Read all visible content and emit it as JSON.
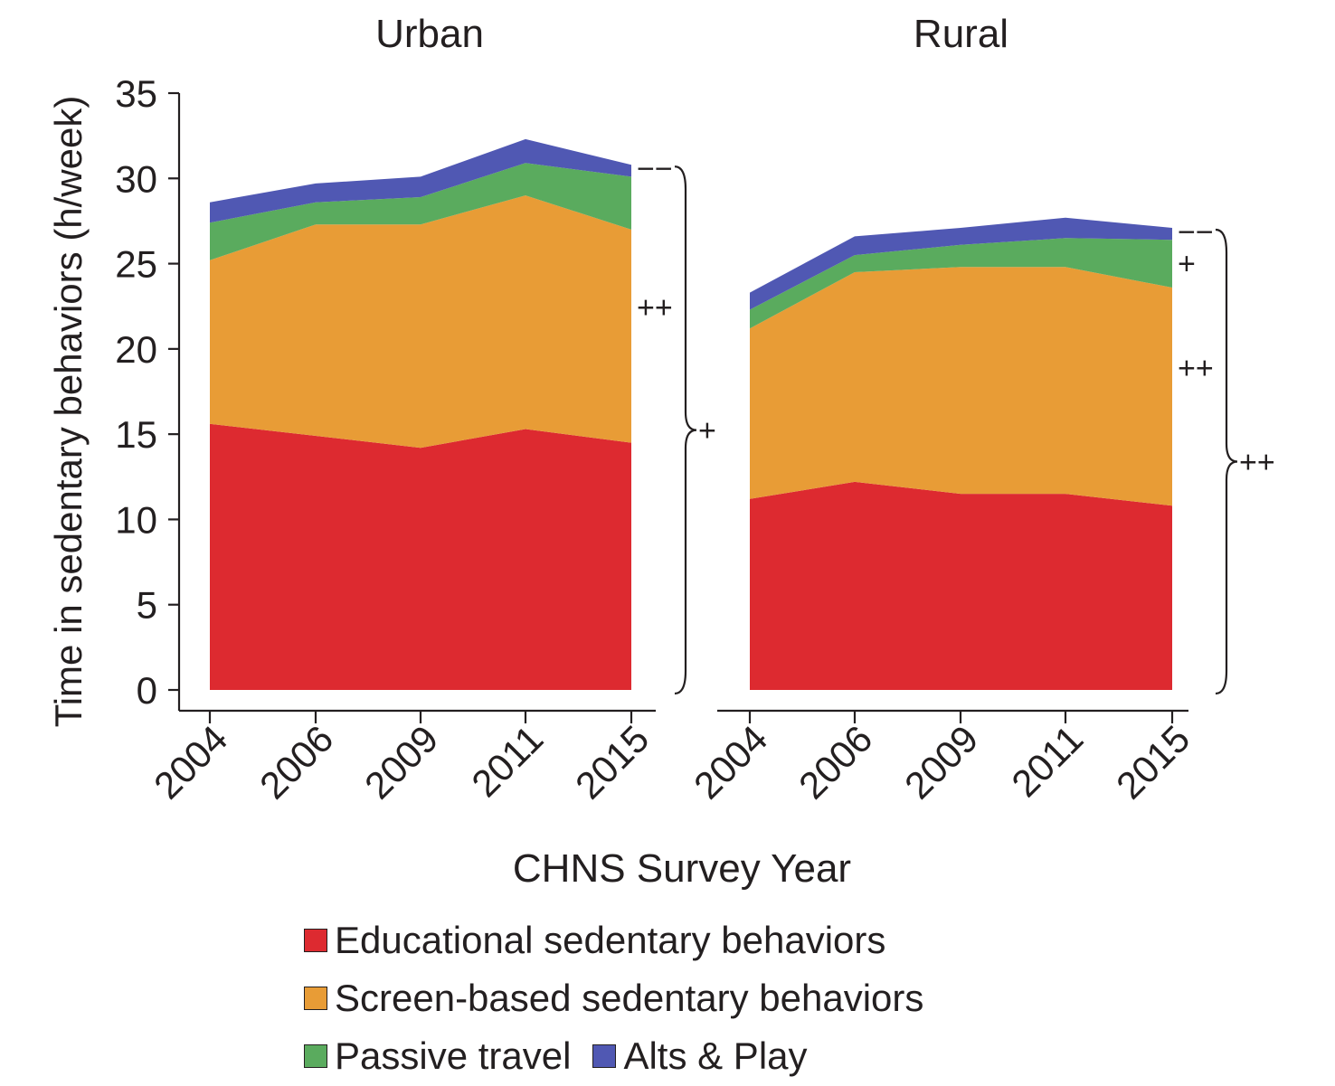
{
  "chart_data": {
    "type": "area",
    "stacked": true,
    "ylabel": "Time in sedentary behaviors (h/week)",
    "xlabel": "CHNS Survey Year",
    "ylim": [
      0,
      35
    ],
    "yticks": [
      0,
      5,
      10,
      15,
      20,
      25,
      30,
      35
    ],
    "categories": [
      "2004",
      "2006",
      "2009",
      "2011",
      "2015"
    ],
    "colors": {
      "Educational sedentary behaviors": "#dd2a30",
      "Screen-based sedentary behaviors": "#e89c36",
      "Passive travel": "#5aab5e",
      "Alts & Play": "#5058b3"
    },
    "legend": [
      "Educational sedentary behaviors",
      "Screen-based sedentary behaviors",
      "Passive travel",
      "Alts & Play"
    ],
    "panels": [
      {
        "title": "Urban",
        "series": [
          {
            "name": "Educational sedentary behaviors",
            "values": [
              15.6,
              14.9,
              14.2,
              15.3,
              14.5
            ]
          },
          {
            "name": "Screen-based sedentary behaviors",
            "values": [
              9.6,
              12.4,
              13.1,
              13.7,
              12.5
            ]
          },
          {
            "name": "Passive travel",
            "values": [
              2.2,
              1.3,
              1.6,
              1.9,
              3.1
            ]
          },
          {
            "name": "Alts & Play",
            "values": [
              1.2,
              1.1,
              1.2,
              1.4,
              0.7
            ]
          }
        ],
        "annotations": [
          {
            "text": "−−",
            "series": "Alts & Play"
          },
          {
            "text": "++",
            "series": "Screen-based sedentary behaviors"
          },
          {
            "text": "+",
            "series": "Total"
          }
        ]
      },
      {
        "title": "Rural",
        "series": [
          {
            "name": "Educational sedentary behaviors",
            "values": [
              11.2,
              12.2,
              11.5,
              11.5,
              10.8
            ]
          },
          {
            "name": "Screen-based sedentary behaviors",
            "values": [
              10.0,
              12.3,
              13.3,
              13.3,
              12.8
            ]
          },
          {
            "name": "Passive travel",
            "values": [
              1.1,
              1.0,
              1.3,
              1.7,
              2.8
            ]
          },
          {
            "name": "Alts & Play",
            "values": [
              1.0,
              1.1,
              1.0,
              1.2,
              0.7
            ]
          }
        ],
        "annotations": [
          {
            "text": "−−",
            "series": "Alts & Play"
          },
          {
            "text": "+",
            "series": "Passive travel"
          },
          {
            "text": "++",
            "series": "Screen-based sedentary behaviors"
          },
          {
            "text": "++",
            "series": "Total"
          }
        ]
      }
    ]
  }
}
